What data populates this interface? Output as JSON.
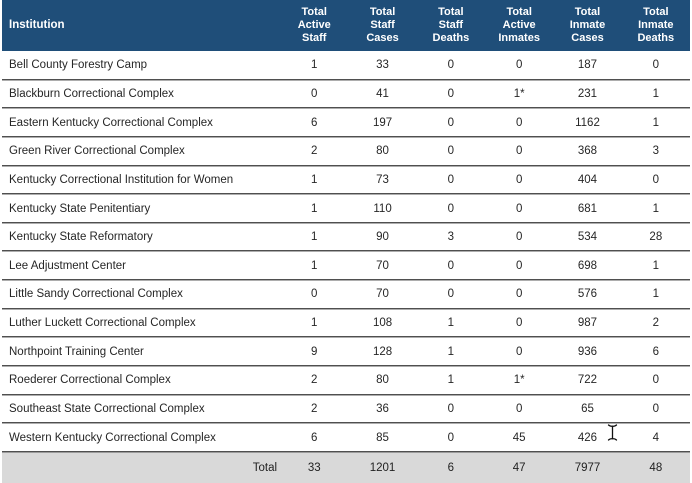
{
  "colors": {
    "header_bg": "#1F4E79",
    "header_text": "#FFFFFF",
    "total_row_bg": "#D9D9D9",
    "row_text": "#262626",
    "divider_dark": "#4F4F4F",
    "divider_light": "#ADADAD"
  },
  "table": {
    "columns": [
      "Institution",
      "Total Active Staff",
      "Total Staff Cases",
      "Total Staff Deaths",
      "Total Active Inmates",
      "Total Inmate Cases",
      "Total Inmate Deaths"
    ],
    "rows": [
      {
        "institution": "Bell County Forestry Camp",
        "values": [
          "1",
          "33",
          "0",
          "0",
          "187",
          "0"
        ]
      },
      {
        "institution": "Blackburn Correctional Complex",
        "values": [
          "0",
          "41",
          "0",
          "1*",
          "231",
          "1"
        ]
      },
      {
        "institution": "Eastern Kentucky Correctional Complex",
        "values": [
          "6",
          "197",
          "0",
          "0",
          "1162",
          "1"
        ]
      },
      {
        "institution": "Green River Correctional Complex",
        "values": [
          "2",
          "80",
          "0",
          "0",
          "368",
          "3"
        ]
      },
      {
        "institution": "Kentucky Correctional Institution for Women",
        "values": [
          "1",
          "73",
          "0",
          "0",
          "404",
          "0"
        ]
      },
      {
        "institution": "Kentucky State Penitentiary",
        "values": [
          "1",
          "110",
          "0",
          "0",
          "681",
          "1"
        ]
      },
      {
        "institution": "Kentucky State Reformatory",
        "values": [
          "1",
          "90",
          "3",
          "0",
          "534",
          "28"
        ]
      },
      {
        "institution": "Lee Adjustment Center",
        "values": [
          "1",
          "70",
          "0",
          "0",
          "698",
          "1"
        ]
      },
      {
        "institution": "Little Sandy Correctional Complex",
        "values": [
          "0",
          "70",
          "0",
          "0",
          "576",
          "1"
        ]
      },
      {
        "institution": "Luther Luckett Correctional Complex",
        "values": [
          "1",
          "108",
          "1",
          "0",
          "987",
          "2"
        ]
      },
      {
        "institution": "Northpoint Training Center",
        "values": [
          "9",
          "128",
          "1",
          "0",
          "936",
          "6"
        ]
      },
      {
        "institution": "Roederer Correctional Complex",
        "values": [
          "2",
          "80",
          "1",
          "1*",
          "722",
          "0"
        ]
      },
      {
        "institution": "Southeast State Correctional Complex",
        "values": [
          "2",
          "36",
          "0",
          "0",
          "65",
          "0"
        ]
      },
      {
        "institution": "Western Kentucky Correctional Complex",
        "values": [
          "6",
          "85",
          "0",
          "45",
          "426",
          "4"
        ]
      }
    ],
    "total": {
      "label": "Total",
      "values": [
        "33",
        "1201",
        "6",
        "47",
        "7977",
        "48"
      ]
    }
  },
  "cursor": {
    "icon": "text-ibeam"
  }
}
